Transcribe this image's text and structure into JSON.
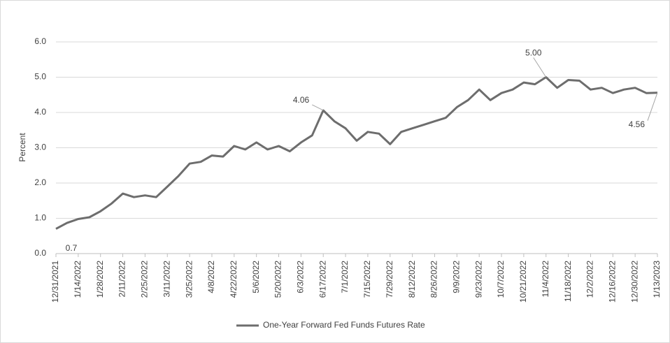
{
  "chart_data": {
    "type": "line",
    "ylabel": "Percent",
    "categories": [
      "12/31/2021",
      null,
      "1/14/2022",
      null,
      "1/28/2022",
      null,
      "2/11/2022",
      null,
      "2/25/2022",
      null,
      "3/11/2022",
      null,
      "3/25/2022",
      null,
      "4/8/2022",
      null,
      "4/22/2022",
      null,
      "5/6/2022",
      null,
      "5/20/2022",
      null,
      "6/3/2022",
      null,
      "6/17/2022",
      null,
      "7/1/2022",
      null,
      "7/15/2022",
      null,
      "7/29/2022",
      null,
      "8/12/2022",
      null,
      "8/26/2022",
      null,
      "9/9/2022",
      null,
      "9/23/2022",
      null,
      "10/7/2022",
      null,
      "10/21/2022",
      null,
      "11/4/2022",
      null,
      "11/18/2022",
      null,
      "12/2/2022",
      null,
      "12/16/2022",
      null,
      "12/30/2022",
      null,
      "1/13/2023"
    ],
    "series": [
      {
        "name": "One-Year Forward Fed Funds Futures Rate",
        "color": "#6d6d6d",
        "values": [
          0.7,
          0.87,
          0.98,
          1.03,
          1.2,
          1.42,
          1.7,
          1.6,
          1.65,
          1.6,
          1.9,
          2.2,
          2.55,
          2.6,
          2.78,
          2.75,
          3.05,
          2.95,
          3.15,
          2.95,
          3.05,
          2.9,
          3.15,
          3.35,
          4.06,
          3.75,
          3.55,
          3.2,
          3.45,
          3.4,
          3.1,
          3.45,
          3.55,
          3.65,
          3.75,
          3.85,
          4.15,
          4.35,
          4.65,
          4.35,
          4.55,
          4.65,
          4.85,
          4.8,
          5.0,
          4.7,
          4.92,
          4.9,
          4.65,
          4.7,
          4.55,
          4.65,
          4.7,
          4.55,
          4.56
        ],
        "value_labels": [
          "0.7",
          null,
          null,
          null,
          null,
          null,
          null,
          null,
          null,
          null,
          null,
          null,
          null,
          null,
          null,
          null,
          null,
          null,
          null,
          null,
          null,
          null,
          null,
          null,
          "4.06",
          null,
          null,
          null,
          null,
          null,
          null,
          null,
          null,
          null,
          null,
          null,
          null,
          null,
          null,
          null,
          null,
          null,
          null,
          null,
          "5.00",
          null,
          null,
          null,
          null,
          null,
          null,
          null,
          null,
          null,
          "4.56"
        ]
      }
    ],
    "ylim": [
      0,
      6
    ],
    "yticks": [
      {
        "value": 0,
        "label": "0.0"
      },
      {
        "value": 1,
        "label": "1.0"
      },
      {
        "value": 2,
        "label": "2.0"
      },
      {
        "value": 3,
        "label": "3.0"
      },
      {
        "value": 4,
        "label": "4.0"
      },
      {
        "value": 5,
        "label": "5.0"
      },
      {
        "value": 6,
        "label": "6.0"
      }
    ],
    "grid": true,
    "legend": "bottom"
  }
}
